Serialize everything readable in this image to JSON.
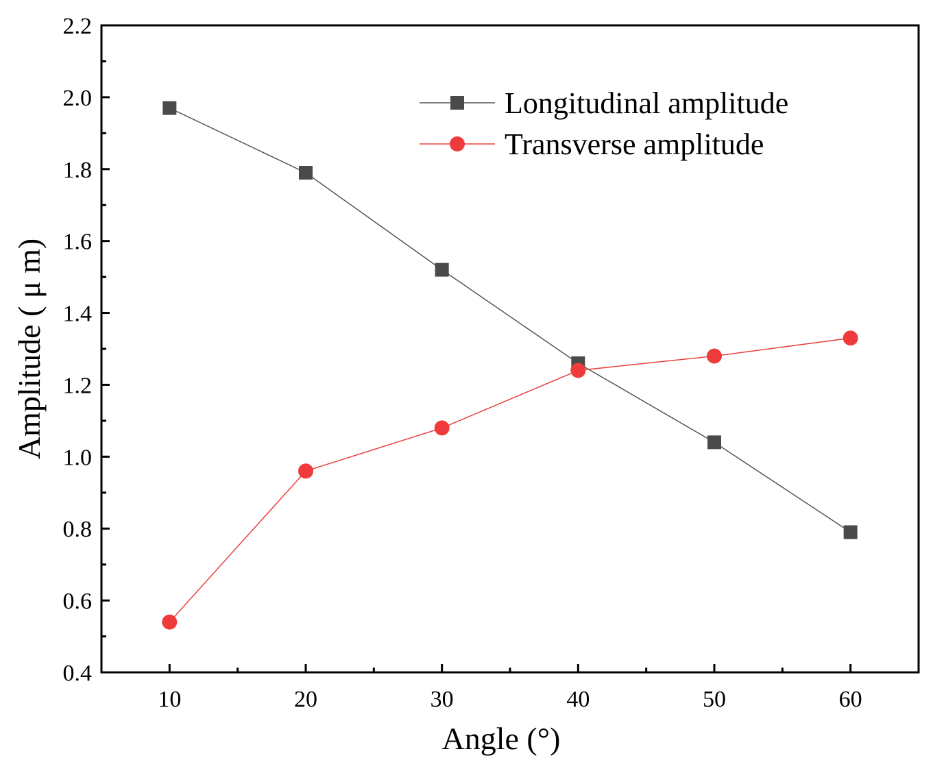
{
  "chart_data": {
    "type": "line",
    "title": "",
    "xlabel": "Angle (°)",
    "ylabel": "Amplitude ( μ m)",
    "x": [
      10,
      20,
      30,
      40,
      50,
      60
    ],
    "xlim": [
      5,
      65
    ],
    "ylim": [
      0.4,
      2.2
    ],
    "xticks": [
      10,
      20,
      30,
      40,
      50,
      60
    ],
    "xtick_labels": [
      "10",
      "20",
      "30",
      "40",
      "50",
      "60"
    ],
    "yticks": [
      0.4,
      0.6,
      0.8,
      1.0,
      1.2,
      1.4,
      1.6,
      1.8,
      2.0,
      2.2
    ],
    "ytick_labels": [
      "0.4",
      "0.6",
      "0.8",
      "1.0",
      "1.2",
      "1.4",
      "1.6",
      "1.8",
      "2.0",
      "2.2"
    ],
    "x_minor_ticks": [
      15,
      25,
      35,
      45,
      55
    ],
    "y_minor_ticks": [
      0.5,
      0.7,
      0.9,
      1.1,
      1.3,
      1.5,
      1.7,
      1.9,
      2.1
    ],
    "grid": false,
    "legend_position": "top-right",
    "series": [
      {
        "name": "Longitudinal amplitude",
        "marker": "square",
        "color": "#4a4a4a",
        "line_color": "#555555",
        "values": [
          1.97,
          1.79,
          1.52,
          1.26,
          1.04,
          0.79
        ]
      },
      {
        "name": "Transverse amplitude",
        "marker": "circle",
        "color": "#ef3b3b",
        "line_color": "#e8413f",
        "values": [
          0.54,
          0.96,
          1.08,
          1.24,
          1.28,
          1.33
        ]
      }
    ]
  }
}
